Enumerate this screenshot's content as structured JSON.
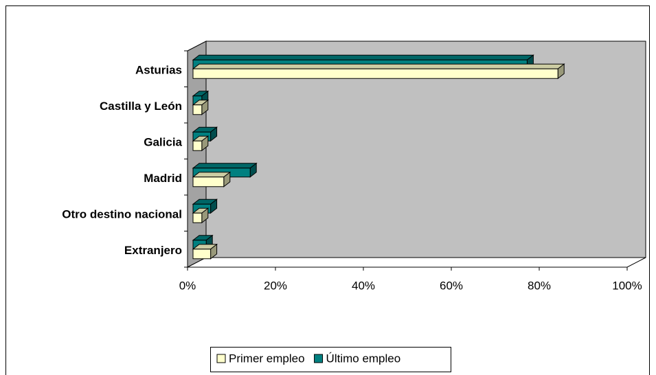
{
  "chart_data": {
    "type": "bar3d_horizontal",
    "categories": [
      "Asturias",
      "Castilla y León",
      "Galicia",
      "Madrid",
      "Otro destino nacional",
      "Extranjero"
    ],
    "series": [
      {
        "name": "Primer empleo",
        "color": "#ffffcc",
        "values": [
          83,
          2,
          2,
          7,
          2,
          4
        ]
      },
      {
        "name": "Último empleo",
        "color": "#008080",
        "values": [
          76,
          2,
          4,
          13,
          4,
          3
        ]
      }
    ],
    "xlim": [
      0,
      100
    ],
    "xticks": [
      {
        "value": 0,
        "label": "0%"
      },
      {
        "value": 20,
        "label": "20%"
      },
      {
        "value": 40,
        "label": "40%"
      },
      {
        "value": 60,
        "label": "60%"
      },
      {
        "value": 80,
        "label": "80%"
      },
      {
        "value": 100,
        "label": "100%"
      }
    ],
    "wall_color": "#c0c0c0",
    "legend": "bottom"
  }
}
